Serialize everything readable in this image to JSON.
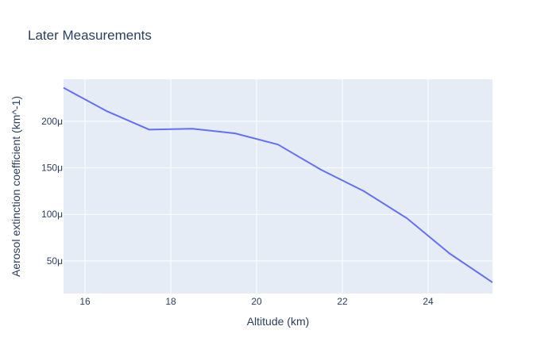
{
  "chart_data": {
    "type": "line",
    "title": "Later Measurements",
    "xlabel": "Altitude (km)",
    "ylabel": "Aerosol extinction coefficient (km^-1)",
    "xlim": [
      15.5,
      25.5
    ],
    "ylim": [
      1.5e-05,
      0.000245
    ],
    "x_ticks": [
      16,
      18,
      20,
      22,
      24
    ],
    "x_tick_labels": [
      "16",
      "18",
      "20",
      "22",
      "24"
    ],
    "y_ticks": [
      5e-05,
      0.0001,
      0.00015,
      0.0002
    ],
    "y_tick_labels": [
      "50μ",
      "100μ",
      "150μ",
      "200μ"
    ],
    "grid": true,
    "series": [
      {
        "color": "#636efa",
        "x": [
          15.5,
          16.5,
          17.5,
          18.5,
          19.5,
          20.5,
          21.5,
          22.5,
          23.5,
          24.5,
          25.5
        ],
        "y": [
          0.000236,
          0.000211,
          0.000191,
          0.000192,
          0.000187,
          0.000175,
          0.000148,
          0.000125,
          9.6e-05,
          5.8e-05,
          2.7e-05
        ]
      }
    ]
  }
}
